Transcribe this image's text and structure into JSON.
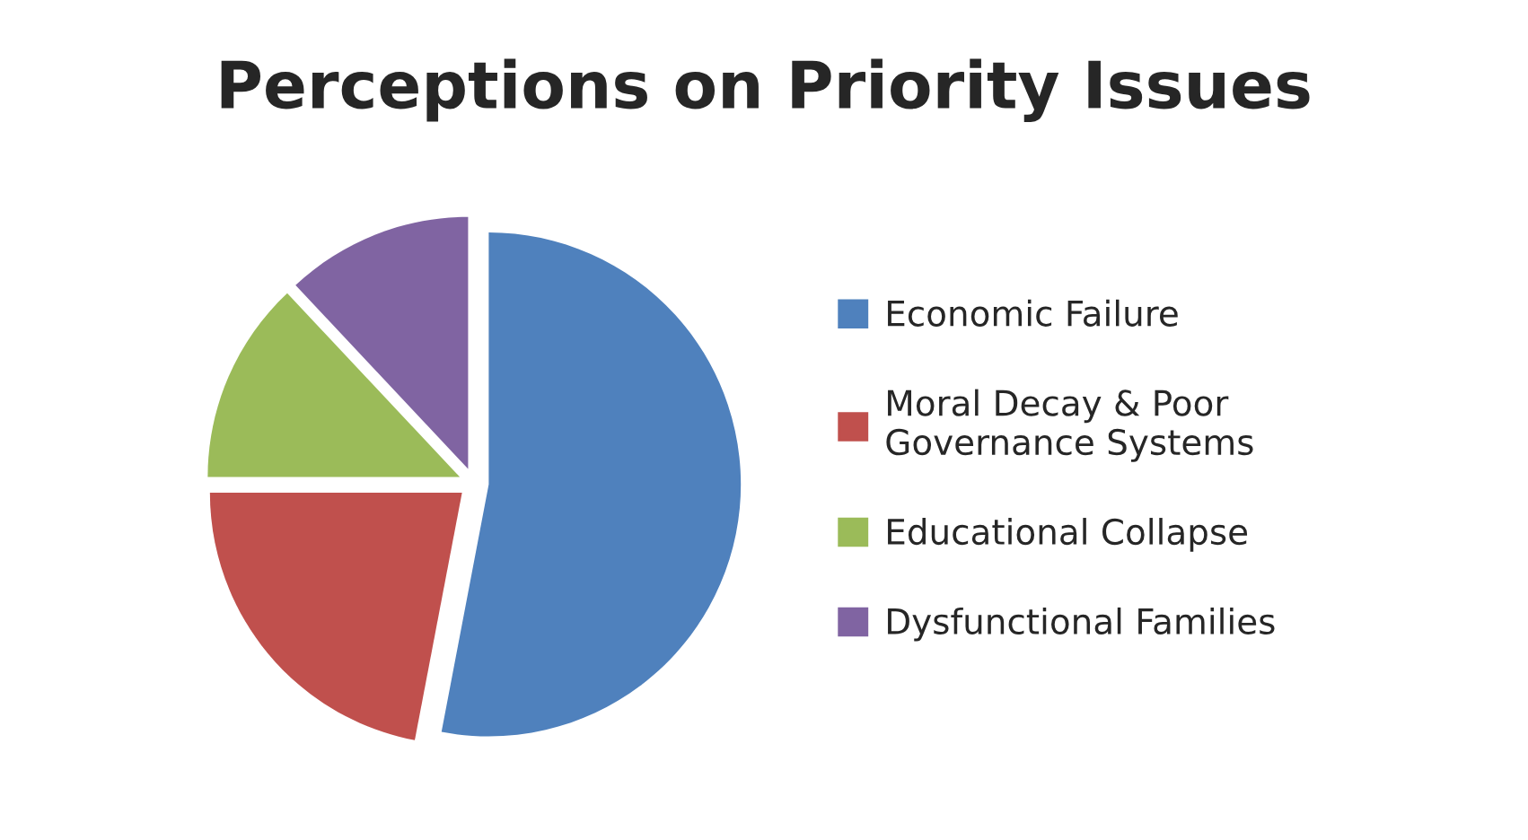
{
  "chart_data": {
    "type": "pie",
    "title": "Perceptions on Priority Issues",
    "categories": [
      "Economic Failure",
      "Moral Decay & Poor\nGovernance Systems",
      "Educational Collapse",
      "Dysfunctional Families"
    ],
    "values": [
      53,
      22,
      13,
      12
    ],
    "colors": [
      "#4f81bd",
      "#c0504d",
      "#9bbb59",
      "#8064a2"
    ],
    "legend": "right"
  }
}
